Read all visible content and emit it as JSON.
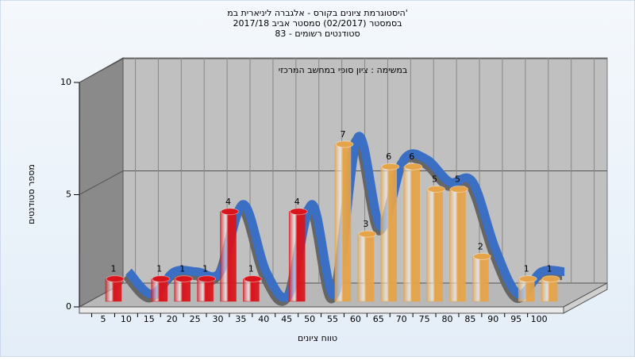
{
  "chart_data": {
    "type": "bar",
    "title": [
      "היסטוגרמת ציונים בקורס - אלגברה ליניארית במ'",
      "בסמסטר  (02/2017)  סמסטר אביב 2017/18",
      "סטודנטים רשומים - 83"
    ],
    "subtitle": "במשימה : ציון סופי במחשב המרכזי",
    "x_label": "טווח ציונים",
    "y_label": "מספר סטודנטים",
    "categories": [
      "5",
      "10",
      "15",
      "20",
      "25",
      "30",
      "35",
      "40",
      "45",
      "50",
      "55",
      "60",
      "65",
      "70",
      "75",
      "80",
      "85",
      "90",
      "95",
      "100"
    ],
    "values": [
      1,
      0,
      1,
      1,
      1,
      4,
      1,
      0,
      4,
      0,
      7,
      3,
      6,
      6,
      5,
      5,
      2,
      0,
      1,
      1
    ],
    "colors": [
      "#d9141b",
      "#d9141b",
      "#d9141b",
      "#d9141b",
      "#d9141b",
      "#d9141b",
      "#d9141b",
      "#d9141b",
      "#d9141b",
      "#d9141b",
      "#e5a44a",
      "#e5a44a",
      "#e5a44a",
      "#e5a44a",
      "#e5a44a",
      "#e5a44a",
      "#e5a44a",
      "#e5a44a",
      "#e5a44a",
      "#e5a44a"
    ],
    "line_color": "#3a6fc4",
    "ylim": [
      0,
      10
    ],
    "yticks": [
      0,
      5,
      10
    ],
    "grid": true
  }
}
